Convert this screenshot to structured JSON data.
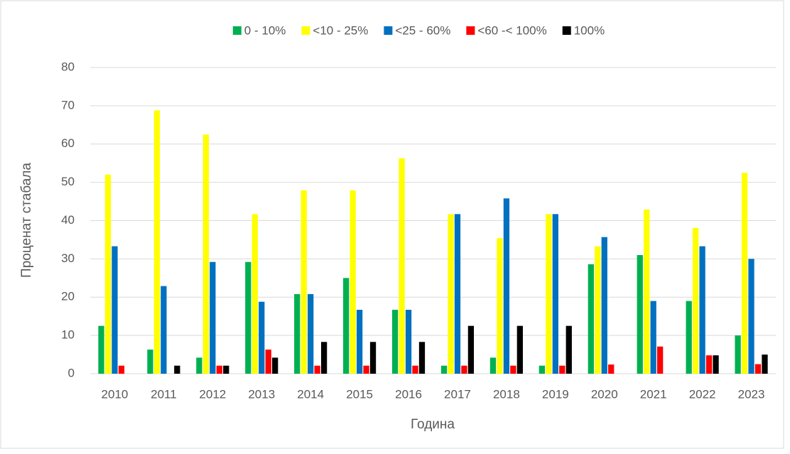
{
  "chart_data": {
    "type": "bar",
    "y_label": "Проценат стабала",
    "x_label": "Година",
    "categories": [
      "2010",
      "2011",
      "2012",
      "2013",
      "2014",
      "2015",
      "2016",
      "2017",
      "2018",
      "2019",
      "2020",
      "2021",
      "2022",
      "2023"
    ],
    "series": [
      {
        "name": "0 - 10%",
        "color": "#00b050",
        "values": [
          12.5,
          6.3,
          4.2,
          29.2,
          20.8,
          25,
          16.7,
          2.1,
          4.2,
          2.1,
          28.6,
          31,
          19,
          10
        ]
      },
      {
        "name": "<10 - 25%",
        "color": "#ffff00",
        "values": [
          52,
          68.8,
          62.5,
          41.7,
          47.9,
          47.9,
          56.3,
          41.7,
          35.4,
          41.7,
          33.3,
          42.9,
          38.1,
          52.5
        ]
      },
      {
        "name": "<25 - 60%",
        "color": "#0070c0",
        "values": [
          33.3,
          22.9,
          29.2,
          18.8,
          20.8,
          16.7,
          16.7,
          41.7,
          45.8,
          41.7,
          35.7,
          19,
          33.3,
          30
        ]
      },
      {
        "name": "<60 -< 100%",
        "color": "#ff0000",
        "values": [
          2.1,
          0,
          2.1,
          6.3,
          2.1,
          2.1,
          2.1,
          2.1,
          2.1,
          2.1,
          2.4,
          7.1,
          4.8,
          2.5
        ]
      },
      {
        "name": "100%",
        "color": "#000000",
        "values": [
          0,
          2.1,
          2.1,
          4.2,
          8.3,
          8.3,
          8.3,
          12.5,
          12.5,
          12.5,
          0,
          0,
          4.8,
          5
        ]
      }
    ],
    "ylim": [
      0,
      80
    ],
    "yticks": [
      0,
      10,
      20,
      30,
      40,
      50,
      60,
      70,
      80
    ],
    "grid": true,
    "legend": "top"
  }
}
